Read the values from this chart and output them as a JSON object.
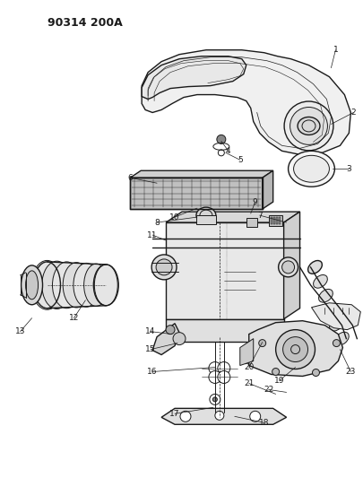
{
  "title": "90314 200A",
  "title_fontsize": 9,
  "background_color": "#ffffff",
  "line_color": "#1a1a1a",
  "figsize": [
    4.05,
    5.33
  ],
  "dpi": 100
}
